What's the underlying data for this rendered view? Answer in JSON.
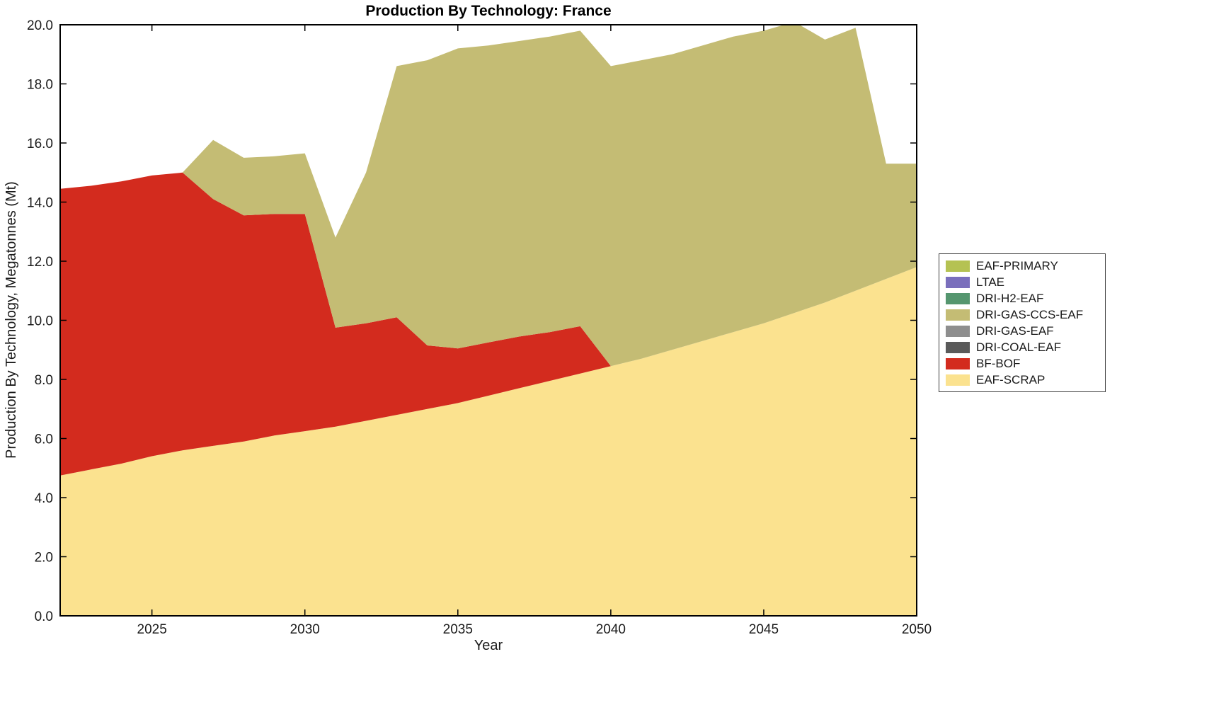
{
  "title": "Production By Technology: France",
  "chart_data": {
    "type": "area",
    "stacked": true,
    "title": "Production By Technology: France",
    "xlabel": "Year",
    "ylabel": "Production By Technology, Megatonnes (Mt)",
    "xlim": [
      2022,
      2050
    ],
    "ylim": [
      0,
      20
    ],
    "grid": false,
    "legend_position": "right-outside",
    "legend_order": "top-of-stack-first",
    "x": [
      2022,
      2023,
      2024,
      2025,
      2026,
      2027,
      2028,
      2029,
      2030,
      2031,
      2032,
      2033,
      2034,
      2035,
      2036,
      2037,
      2038,
      2039,
      2040,
      2041,
      2042,
      2043,
      2044,
      2045,
      2046,
      2047,
      2048,
      2049,
      2050
    ],
    "xticks": [
      2025,
      2030,
      2035,
      2040,
      2045,
      2050
    ],
    "xtick_labels": [
      "2025",
      "2030",
      "2035",
      "2040",
      "2045",
      "2050"
    ],
    "yticks": [
      0,
      2,
      4,
      6,
      8,
      10,
      12,
      14,
      16,
      18,
      20
    ],
    "ytick_labels": [
      "0.0",
      "2.0",
      "4.0",
      "6.0",
      "8.0",
      "10.0",
      "12.0",
      "14.0",
      "16.0",
      "18.0",
      "20.0"
    ],
    "series": [
      {
        "name": "EAF-SCRAP",
        "color": "#fbe28f",
        "values": [
          4.75,
          4.95,
          5.15,
          5.4,
          5.6,
          5.75,
          5.9,
          6.1,
          6.25,
          6.4,
          6.6,
          6.8,
          7.0,
          7.2,
          7.45,
          7.7,
          7.95,
          8.2,
          8.45,
          8.7,
          9.0,
          9.3,
          9.6,
          9.9,
          10.25,
          10.6,
          11.0,
          11.4,
          11.8
        ]
      },
      {
        "name": "BF-BOF",
        "color": "#d32b1e",
        "values": [
          9.7,
          9.6,
          9.55,
          9.5,
          9.4,
          8.35,
          7.65,
          7.5,
          7.35,
          3.35,
          3.3,
          3.3,
          2.15,
          1.85,
          1.8,
          1.75,
          1.65,
          1.6,
          0,
          0,
          0,
          0,
          0,
          0,
          0,
          0,
          0,
          0,
          0
        ]
      },
      {
        "name": "DRI-COAL-EAF",
        "color": "#5a5a5a",
        "values": [
          0,
          0,
          0,
          0,
          0,
          0,
          0,
          0,
          0,
          0,
          0,
          0,
          0,
          0,
          0,
          0,
          0,
          0,
          0,
          0,
          0,
          0,
          0,
          0,
          0,
          0,
          0,
          0,
          0
        ]
      },
      {
        "name": "DRI-GAS-EAF",
        "color": "#8e8e8e",
        "values": [
          0,
          0,
          0,
          0,
          0,
          0,
          0,
          0,
          0,
          0,
          0,
          0,
          0,
          0,
          0,
          0,
          0,
          0,
          0,
          0,
          0,
          0,
          0,
          0,
          0,
          0,
          0,
          0,
          0
        ]
      },
      {
        "name": "DRI-GAS-CCS-EAF",
        "color": "#c4bc74",
        "values": [
          0,
          0,
          0,
          0,
          0,
          2.0,
          1.95,
          1.95,
          2.05,
          3.05,
          5.1,
          8.5,
          9.65,
          10.15,
          10.05,
          10.0,
          10.0,
          10.0,
          10.15,
          10.1,
          10.0,
          10.0,
          10.0,
          9.9,
          9.85,
          8.9,
          8.9,
          3.9,
          3.5
        ]
      },
      {
        "name": "DRI-H2-EAF",
        "color": "#55966f",
        "values": [
          0,
          0,
          0,
          0,
          0,
          0,
          0,
          0,
          0,
          0,
          0,
          0,
          0,
          0,
          0,
          0,
          0,
          0,
          0,
          0,
          0,
          0,
          0,
          0,
          0,
          0,
          0,
          0,
          0
        ]
      },
      {
        "name": "LTAE",
        "color": "#7a6fbc",
        "values": [
          0,
          0,
          0,
          0,
          0,
          0,
          0,
          0,
          0,
          0,
          0,
          0,
          0,
          0,
          0,
          0,
          0,
          0,
          0,
          0,
          0,
          0,
          0,
          0,
          0,
          0,
          0,
          0,
          0
        ]
      },
      {
        "name": "EAF-PRIMARY",
        "color": "#b5c252",
        "values": [
          0,
          0,
          0,
          0,
          0,
          0,
          0,
          0,
          0,
          0,
          0,
          0,
          0,
          0,
          0,
          0,
          0,
          0,
          0,
          0,
          0,
          0,
          0,
          0,
          0,
          0,
          0,
          0,
          0
        ]
      }
    ]
  }
}
